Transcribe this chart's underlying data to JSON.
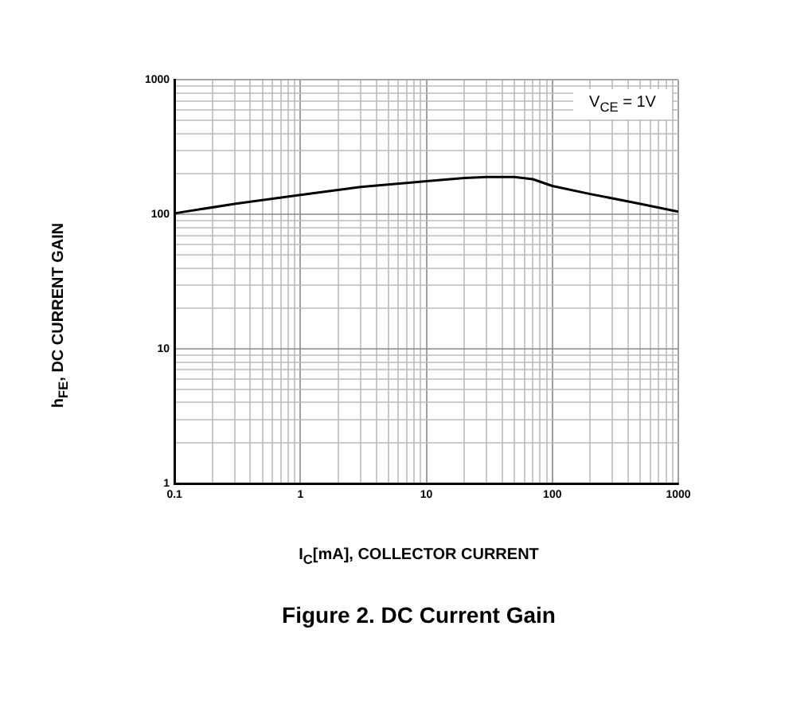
{
  "chart_data": {
    "type": "line",
    "title": "Figure 2. DC Current Gain",
    "xlabel": "I$_{C}$[mA], COLLECTOR CURRENT",
    "ylabel": "h$_{FE}$, DC CURRENT GAIN",
    "annotations": [
      "V$_{CE}$ = 1V"
    ],
    "log": "xy",
    "grid": true,
    "legend": false,
    "marker": "none",
    "line_style": "solid",
    "x": [
      0.1,
      0.3,
      1,
      3,
      10,
      20,
      30,
      50,
      70,
      100,
      200,
      500,
      1000
    ],
    "series": [
      {
        "color": "#000000",
        "values": [
          102,
          120,
          140,
          160,
          177,
          187,
          190,
          190,
          183,
          163,
          142,
          120,
          105
        ]
      }
    ],
    "xlim": [
      0.1,
      1000
    ],
    "ylim": [
      1,
      1000
    ],
    "xticks": [
      0.1,
      {
        "value": 0.2,
        "label": null
      },
      {
        "value": 0.3,
        "label": null
      },
      {
        "value": 0.4,
        "label": null
      },
      {
        "value": 0.5,
        "label": null
      },
      {
        "value": 0.6,
        "label": null
      },
      {
        "value": 0.7,
        "label": null
      },
      {
        "value": 0.8,
        "label": null
      },
      {
        "value": 0.9,
        "label": null
      },
      1,
      {
        "value": 2,
        "label": null
      },
      {
        "value": 3,
        "label": null
      },
      {
        "value": 4,
        "label": null
      },
      {
        "value": 5,
        "label": null
      },
      {
        "value": 6,
        "label": null
      },
      {
        "value": 7,
        "label": null
      },
      {
        "value": 8,
        "label": null
      },
      {
        "value": 9,
        "label": null
      },
      10,
      {
        "value": 20,
        "label": null
      },
      {
        "value": 30,
        "label": null
      },
      {
        "value": 40,
        "label": null
      },
      {
        "value": 50,
        "label": null
      },
      {
        "value": 60,
        "label": null
      },
      {
        "value": 70,
        "label": null
      },
      {
        "value": 80,
        "label": null
      },
      {
        "value": 90,
        "label": null
      },
      100,
      {
        "value": 200,
        "label": null
      },
      {
        "value": 300,
        "label": null
      },
      {
        "value": 400,
        "label": null
      },
      {
        "value": 500,
        "label": null
      },
      {
        "value": 600,
        "label": null
      },
      {
        "value": 700,
        "label": null
      },
      {
        "value": 800,
        "label": null
      },
      {
        "value": 900,
        "label": null
      },
      1000
    ],
    "yticks": [
      1,
      {
        "value": 2,
        "label": null
      },
      {
        "value": 3,
        "label": null
      },
      {
        "value": 4,
        "label": null
      },
      {
        "value": 5,
        "label": null
      },
      {
        "value": 6,
        "label": null
      },
      {
        "value": 7,
        "label": null
      },
      {
        "value": 8,
        "label": null
      },
      {
        "value": 9,
        "label": null
      },
      10,
      {
        "value": 20,
        "label": null
      },
      {
        "value": 30,
        "label": null
      },
      {
        "value": 40,
        "label": null
      },
      {
        "value": 50,
        "label": null
      },
      {
        "value": 60,
        "label": null
      },
      {
        "value": 70,
        "label": null
      },
      {
        "value": 80,
        "label": null
      },
      {
        "value": 90,
        "label": null
      },
      100,
      {
        "value": 200,
        "label": null
      },
      {
        "value": 300,
        "label": null
      },
      {
        "value": 400,
        "label": null
      },
      {
        "value": 500,
        "label": null
      },
      {
        "value": 600,
        "label": null
      },
      {
        "value": 700,
        "label": null
      },
      {
        "value": 800,
        "label": null
      },
      {
        "value": 900,
        "label": null
      },
      1000
    ]
  }
}
